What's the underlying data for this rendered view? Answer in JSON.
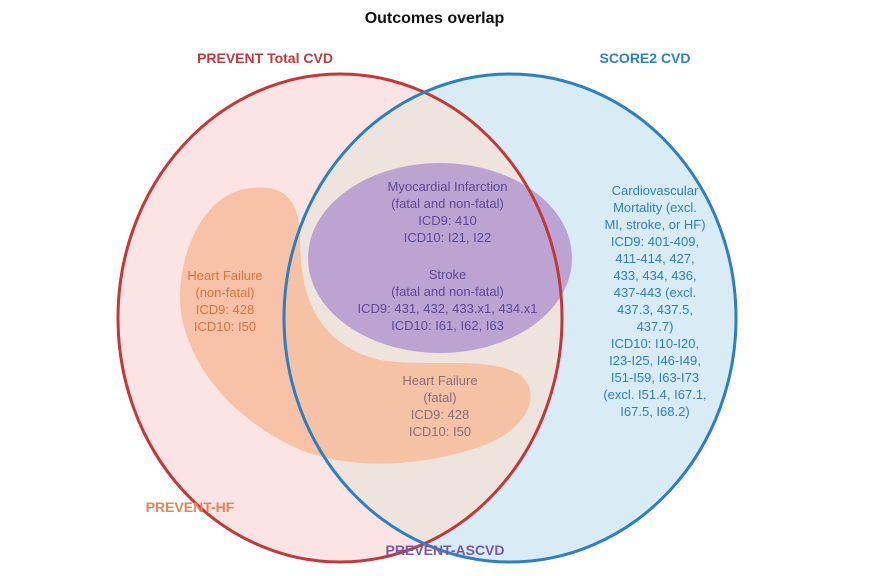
{
  "title": "Outcomes overlap",
  "colors": {
    "prevent_total_cvd": "#c0393b",
    "score2_cvd": "#2d7fc0",
    "prevent_hf": "#e8825a",
    "prevent_ascvd": "#7a57a8",
    "mi_stroke_text": "#5b4b9a",
    "hf_text": "#d8743e",
    "cvm_text": "#2d7fc0",
    "hf_fatal_text": "#8a6d7a"
  },
  "sets": {
    "prevent_total_cvd": "PREVENT Total CVD",
    "score2_cvd": "SCORE2 CVD",
    "prevent_hf": "PREVENT-HF",
    "prevent_ascvd": "PREVENT-ASCVD"
  },
  "outcomes": {
    "mi": [
      "Myocardial Infarction",
      "(fatal and non-fatal)",
      "ICD9: 410",
      "ICD10: I21, I22"
    ],
    "stroke": [
      "Stroke",
      "(fatal and non-fatal)",
      "ICD9: 431, 432, 433.x1, 434.x1",
      "ICD10: I61, I62, I63"
    ],
    "hf_nonfatal": [
      "Heart Failure",
      "(non-fatal)",
      "ICD9: 428",
      "ICD10: I50"
    ],
    "hf_fatal": [
      "Heart Failure",
      "(fatal)",
      "ICD9: 428",
      "ICD10: I50"
    ],
    "cv_mortality": [
      "Cardiovascular",
      "Mortality (excl.",
      "MI, stroke, or HF)",
      "ICD9: 401-409,",
      "411-414, 427,",
      "433, 434, 436,",
      "437-443 (excl.",
      "437.3, 437.5,",
      "437.7)",
      "ICD10: I10-I20,",
      "I23-I25, I46-I49,",
      "I51-I59, I63-I73",
      "(excl. I51.4, I67.1,",
      "I67.5, I68.2)"
    ]
  }
}
